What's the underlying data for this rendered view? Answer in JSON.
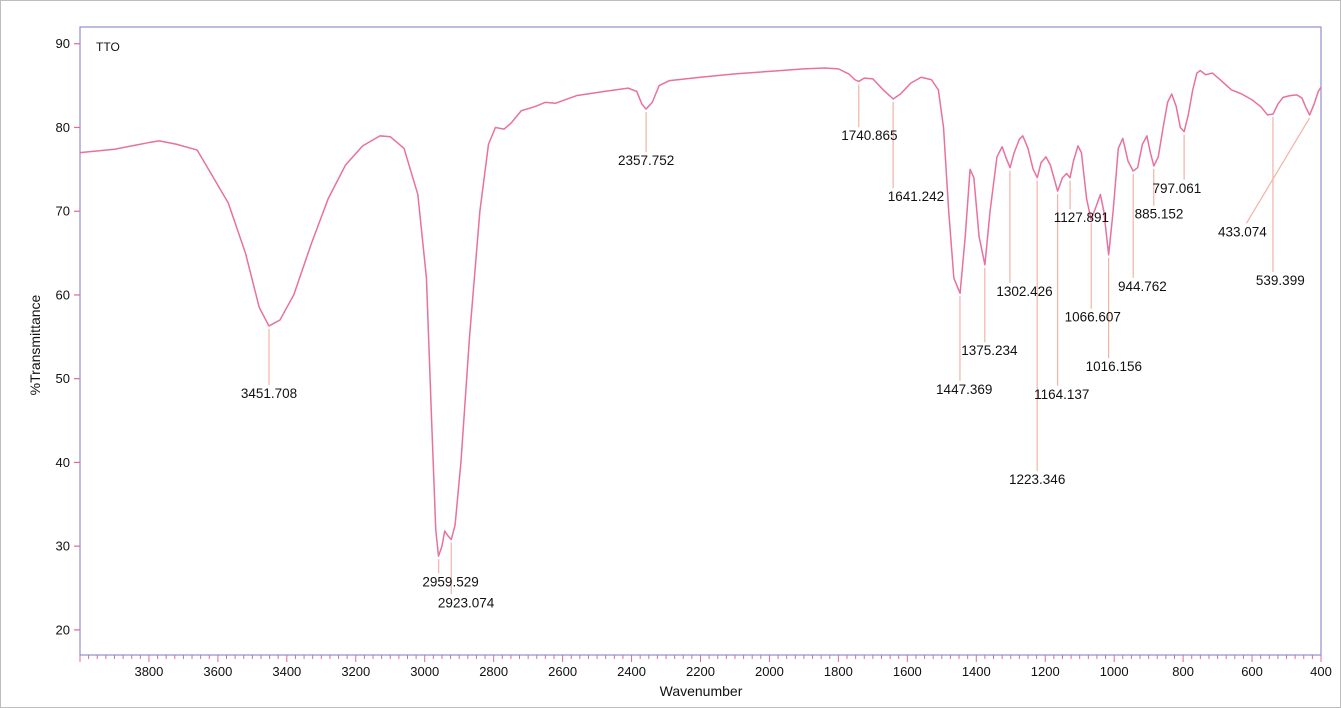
{
  "chart_data": {
    "type": "line",
    "legend": "TTO",
    "xlabel": "Wavenumber",
    "ylabel": "%Transmittance",
    "xlim": [
      4000,
      400
    ],
    "ylim": [
      17,
      92
    ],
    "x_reversed": true,
    "grid": false,
    "legend_position": "top-left",
    "x_ticks": [
      3800,
      3600,
      3400,
      3200,
      3000,
      2800,
      2600,
      2400,
      2200,
      2000,
      1800,
      1600,
      1400,
      1200,
      1000,
      800,
      600,
      400
    ],
    "y_ticks": [
      20,
      30,
      40,
      50,
      60,
      70,
      80,
      90
    ],
    "series": [
      {
        "name": "TTO",
        "color": "#e8719e",
        "points": [
          [
            4000,
            77.0
          ],
          [
            3900,
            77.4
          ],
          [
            3800,
            78.2
          ],
          [
            3770,
            78.4
          ],
          [
            3720,
            78.0
          ],
          [
            3660,
            77.3
          ],
          [
            3620,
            74.5
          ],
          [
            3570,
            71.0
          ],
          [
            3520,
            65.0
          ],
          [
            3480,
            58.5
          ],
          [
            3452,
            56.3
          ],
          [
            3420,
            57.0
          ],
          [
            3380,
            60.0
          ],
          [
            3330,
            66.0
          ],
          [
            3280,
            71.5
          ],
          [
            3230,
            75.5
          ],
          [
            3180,
            77.8
          ],
          [
            3130,
            79.0
          ],
          [
            3100,
            78.9
          ],
          [
            3060,
            77.5
          ],
          [
            3020,
            72.0
          ],
          [
            2995,
            62.0
          ],
          [
            2980,
            45.0
          ],
          [
            2968,
            32.0
          ],
          [
            2960,
            28.8
          ],
          [
            2950,
            30.0
          ],
          [
            2942,
            31.8
          ],
          [
            2932,
            31.2
          ],
          [
            2923,
            30.8
          ],
          [
            2912,
            32.5
          ],
          [
            2895,
            40.0
          ],
          [
            2870,
            55.0
          ],
          [
            2840,
            70.0
          ],
          [
            2815,
            78.0
          ],
          [
            2795,
            80.0
          ],
          [
            2770,
            79.8
          ],
          [
            2750,
            80.5
          ],
          [
            2720,
            82.0
          ],
          [
            2680,
            82.5
          ],
          [
            2650,
            83.0
          ],
          [
            2620,
            82.9
          ],
          [
            2560,
            83.8
          ],
          [
            2480,
            84.3
          ],
          [
            2410,
            84.7
          ],
          [
            2385,
            84.3
          ],
          [
            2370,
            82.8
          ],
          [
            2358,
            82.2
          ],
          [
            2340,
            83.0
          ],
          [
            2320,
            85.0
          ],
          [
            2290,
            85.6
          ],
          [
            2200,
            86.0
          ],
          [
            2100,
            86.4
          ],
          [
            2000,
            86.7
          ],
          [
            1900,
            87.0
          ],
          [
            1840,
            87.1
          ],
          [
            1800,
            87.0
          ],
          [
            1770,
            86.4
          ],
          [
            1752,
            85.7
          ],
          [
            1741,
            85.5
          ],
          [
            1725,
            85.9
          ],
          [
            1700,
            85.8
          ],
          [
            1670,
            84.5
          ],
          [
            1641,
            83.4
          ],
          [
            1620,
            84.0
          ],
          [
            1590,
            85.3
          ],
          [
            1560,
            86.0
          ],
          [
            1530,
            85.7
          ],
          [
            1510,
            84.5
          ],
          [
            1495,
            80.0
          ],
          [
            1480,
            70.0
          ],
          [
            1465,
            62.0
          ],
          [
            1447,
            60.2
          ],
          [
            1432,
            67.0
          ],
          [
            1418,
            75.0
          ],
          [
            1407,
            74.0
          ],
          [
            1392,
            67.0
          ],
          [
            1375,
            63.6
          ],
          [
            1360,
            70.0
          ],
          [
            1340,
            76.5
          ],
          [
            1325,
            77.7
          ],
          [
            1313,
            76.3
          ],
          [
            1302,
            75.2
          ],
          [
            1290,
            77.0
          ],
          [
            1275,
            78.6
          ],
          [
            1265,
            79.0
          ],
          [
            1250,
            77.5
          ],
          [
            1235,
            75.0
          ],
          [
            1223,
            74.0
          ],
          [
            1212,
            75.8
          ],
          [
            1198,
            76.5
          ],
          [
            1185,
            75.5
          ],
          [
            1164,
            72.4
          ],
          [
            1150,
            74.0
          ],
          [
            1138,
            74.5
          ],
          [
            1128,
            74.0
          ],
          [
            1118,
            76.0
          ],
          [
            1105,
            77.8
          ],
          [
            1095,
            77.0
          ],
          [
            1080,
            71.5
          ],
          [
            1067,
            69.0
          ],
          [
            1053,
            70.5
          ],
          [
            1040,
            72.0
          ],
          [
            1030,
            70.0
          ],
          [
            1016,
            64.8
          ],
          [
            1003,
            70.0
          ],
          [
            988,
            77.5
          ],
          [
            975,
            78.7
          ],
          [
            960,
            76.0
          ],
          [
            945,
            74.8
          ],
          [
            932,
            75.2
          ],
          [
            918,
            78.0
          ],
          [
            905,
            79.0
          ],
          [
            895,
            77.0
          ],
          [
            885,
            75.4
          ],
          [
            872,
            76.5
          ],
          [
            858,
            80.0
          ],
          [
            845,
            83.0
          ],
          [
            833,
            84.0
          ],
          [
            820,
            82.5
          ],
          [
            808,
            80.0
          ],
          [
            797,
            79.5
          ],
          [
            785,
            81.5
          ],
          [
            772,
            84.5
          ],
          [
            760,
            86.5
          ],
          [
            750,
            86.8
          ],
          [
            735,
            86.3
          ],
          [
            715,
            86.5
          ],
          [
            695,
            85.8
          ],
          [
            660,
            84.5
          ],
          [
            630,
            84.0
          ],
          [
            600,
            83.3
          ],
          [
            575,
            82.5
          ],
          [
            555,
            81.5
          ],
          [
            539,
            81.6
          ],
          [
            525,
            82.8
          ],
          [
            510,
            83.6
          ],
          [
            490,
            83.8
          ],
          [
            470,
            83.9
          ],
          [
            455,
            83.5
          ],
          [
            445,
            82.5
          ],
          [
            433,
            81.5
          ],
          [
            420,
            82.8
          ],
          [
            408,
            84.3
          ],
          [
            400,
            84.8
          ]
        ]
      }
    ],
    "annotations": [
      {
        "text": "3451.708",
        "x": 3451.708,
        "y": 56.3
      },
      {
        "text": "2959.529",
        "x": 2959.529,
        "y": 28.8
      },
      {
        "text": "2923.074",
        "x": 2923.074,
        "y": 30.8
      },
      {
        "text": "2357.752",
        "x": 2357.752,
        "y": 82.2
      },
      {
        "text": "1740.865",
        "x": 1740.865,
        "y": 85.5
      },
      {
        "text": "1641.242",
        "x": 1641.242,
        "y": 83.4
      },
      {
        "text": "1447.369",
        "x": 1447.369,
        "y": 60.2
      },
      {
        "text": "1375.234",
        "x": 1375.234,
        "y": 63.6
      },
      {
        "text": "1302.426",
        "x": 1302.426,
        "y": 75.2
      },
      {
        "text": "1223.346",
        "x": 1223.346,
        "y": 74.0
      },
      {
        "text": "1164.137",
        "x": 1164.137,
        "y": 72.4
      },
      {
        "text": "1127.891",
        "x": 1127.891,
        "y": 74.0
      },
      {
        "text": "1066.607",
        "x": 1066.607,
        "y": 69.0
      },
      {
        "text": "1016.156",
        "x": 1016.156,
        "y": 64.8
      },
      {
        "text": "944.762",
        "x": 944.762,
        "y": 74.8
      },
      {
        "text": "885.152",
        "x": 885.152,
        "y": 75.4
      },
      {
        "text": "797.061",
        "x": 797.061,
        "y": 79.5
      },
      {
        "text": "539.399",
        "x": 539.399,
        "y": 81.6
      },
      {
        "text": "433.074",
        "x": 433.074,
        "y": 81.5
      }
    ]
  },
  "colors": {
    "frame": "#8f8fd0",
    "tick": "#e06b8e",
    "leader": "#f1b3a6",
    "text": "#111111"
  }
}
